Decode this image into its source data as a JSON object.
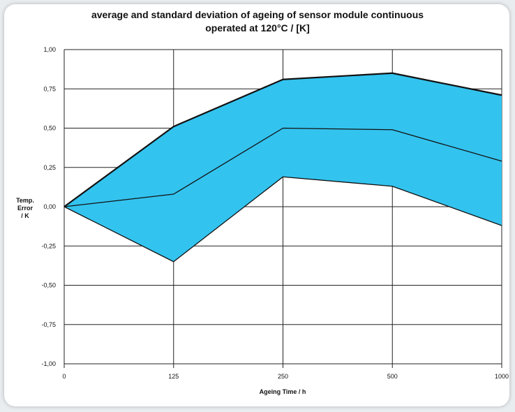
{
  "chart_data": {
    "type": "area",
    "title_line1": "average and standard deviation of ageing of sensor module continuous",
    "title_line2": "operated at 120°C / [K]",
    "xlabel": "Ageing Time / h",
    "ylabel": [
      "Temp.",
      "Error",
      "/ K"
    ],
    "categories": [
      "0",
      "125",
      "250",
      "500",
      "1000"
    ],
    "ylim": [
      -1.0,
      1.0
    ],
    "y_ticks": [
      "1,00",
      "0,75",
      "0,50",
      "0,25",
      "0,00",
      "-0,25",
      "-0,50",
      "-0,75",
      "-1,00"
    ],
    "y_tick_values": [
      1.0,
      0.75,
      0.5,
      0.25,
      0.0,
      -0.25,
      -0.5,
      -0.75,
      -1.0
    ],
    "series": [
      {
        "values": [
          0.0,
          0.51,
          0.81,
          0.85,
          0.71
        ]
      },
      {
        "values": [
          0.0,
          0.08,
          0.5,
          0.49,
          0.29
        ]
      },
      {
        "values": [
          0.0,
          -0.35,
          0.19,
          0.13,
          -0.12
        ]
      }
    ],
    "fill_color": "#33c3ef",
    "grid": true
  }
}
